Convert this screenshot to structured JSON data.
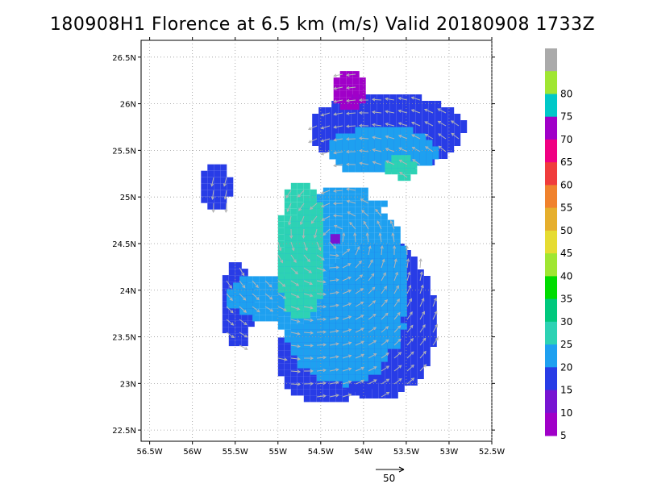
{
  "title": "180908H1 Florence at 6.5 km (m/s) Valid 20180908 1733Z",
  "map": {
    "lon_range": [
      -56.6,
      -52.5
    ],
    "lat_range": [
      22.38,
      26.68
    ],
    "lon_ticks": [
      {
        "value": -56.5,
        "label": "56.5W"
      },
      {
        "value": -56.0,
        "label": "56W"
      },
      {
        "value": -55.5,
        "label": "55.5W"
      },
      {
        "value": -55.0,
        "label": "55W"
      },
      {
        "value": -54.5,
        "label": "54.5W"
      },
      {
        "value": -54.0,
        "label": "54W"
      },
      {
        "value": -53.5,
        "label": "53.5W"
      },
      {
        "value": -53.0,
        "label": "53W"
      },
      {
        "value": -52.5,
        "label": "52.5W"
      }
    ],
    "lat_ticks": [
      {
        "value": 22.5,
        "label": "22.5N"
      },
      {
        "value": 23.0,
        "label": "23N"
      },
      {
        "value": 23.5,
        "label": "23.5N"
      },
      {
        "value": 24.0,
        "label": "24N"
      },
      {
        "value": 24.5,
        "label": "24.5N"
      },
      {
        "value": 25.0,
        "label": "25N"
      },
      {
        "value": 25.5,
        "label": "25.5N"
      },
      {
        "value": 26.0,
        "label": "26N"
      },
      {
        "value": 26.5,
        "label": "26.5N"
      }
    ],
    "grid": true,
    "storm_center": {
      "lon": -54.33,
      "lat": 24.55
    }
  },
  "colorbar": {
    "bins": [
      {
        "label": "",
        "color": "#aaaaaa"
      },
      {
        "label": "80",
        "color": "#a0e632"
      },
      {
        "label": "75",
        "color": "#00c8c8"
      },
      {
        "label": "70",
        "color": "#a000c8"
      },
      {
        "label": "65",
        "color": "#f00082"
      },
      {
        "label": "60",
        "color": "#f03c3c"
      },
      {
        "label": "55",
        "color": "#f0822d"
      },
      {
        "label": "50",
        "color": "#e6af2d"
      },
      {
        "label": "45",
        "color": "#e6dc32"
      },
      {
        "label": "40",
        "color": "#a0e632"
      },
      {
        "label": "35",
        "color": "#00dc00"
      },
      {
        "label": "30",
        "color": "#00c87d"
      },
      {
        "label": "25",
        "color": "#2dd2b4"
      },
      {
        "label": "20",
        "color": "#1ea0f0"
      },
      {
        "label": "15",
        "color": "#283ce6"
      },
      {
        "label": "10",
        "color": "#7814d2"
      },
      {
        "label": "5",
        "color": "#a000c8"
      }
    ]
  },
  "reference_vector": {
    "label": "50"
  },
  "wind_field": {
    "units": "m/s",
    "regions": [
      {
        "name": "east-lobe",
        "lon": [
          -54.5,
          -53.15
        ],
        "lat": [
          22.85,
          24.5
        ],
        "color": "#283ce6"
      },
      {
        "name": "south-arc",
        "lon": [
          -55.0,
          -53.8
        ],
        "lat": [
          22.8,
          23.7
        ],
        "color": "#283ce6"
      },
      {
        "name": "north-band",
        "lon": [
          -54.6,
          -52.85
        ],
        "lat": [
          25.3,
          26.1
        ],
        "color": "#283ce6"
      },
      {
        "name": "north-cap",
        "lon": [
          -54.35,
          -53.95
        ],
        "lat": [
          25.95,
          26.35
        ],
        "color": "#a000c8"
      },
      {
        "name": "west-spur",
        "lon": [
          -55.65,
          -55.3
        ],
        "lat": [
          23.4,
          24.3
        ],
        "color": "#283ce6"
      },
      {
        "name": "nw-fragment",
        "lon": [
          -55.9,
          -55.55
        ],
        "lat": [
          24.85,
          25.35
        ],
        "color": "#283ce6"
      },
      {
        "name": "core-cyan",
        "lon": [
          -55.0,
          -53.5
        ],
        "lat": [
          23.0,
          25.1
        ],
        "color": "#1ea0f0"
      },
      {
        "name": "west-arm-cyan",
        "lon": [
          -55.6,
          -54.7
        ],
        "lat": [
          23.7,
          24.15
        ],
        "color": "#1ea0f0"
      },
      {
        "name": "north-band-cyan",
        "lon": [
          -54.4,
          -53.15
        ],
        "lat": [
          25.25,
          25.75
        ],
        "color": "#1ea0f0"
      },
      {
        "name": "eyewall-teal",
        "lon": [
          -55.0,
          -54.45
        ],
        "lat": [
          23.7,
          25.15
        ],
        "color": "#2dd2b4"
      },
      {
        "name": "ne-teal",
        "lon": [
          -53.75,
          -53.35
        ],
        "lat": [
          25.2,
          25.45
        ],
        "color": "#2dd2b4"
      }
    ]
  }
}
